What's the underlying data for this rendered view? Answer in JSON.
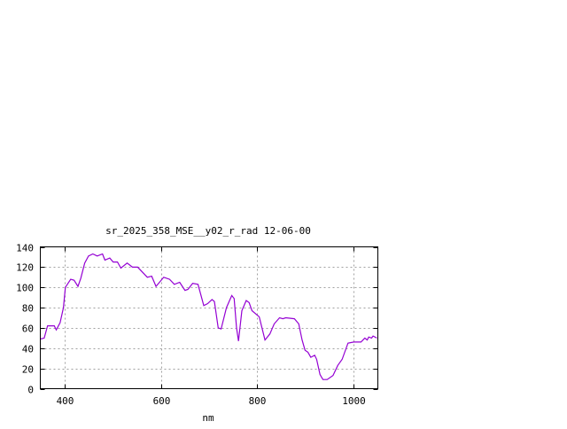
{
  "chart_data": {
    "type": "line",
    "title": "sr_2025_358_MSE__y02_r_rad 12-06-00",
    "xlabel": "nm",
    "ylabel": "",
    "xlim": [
      350,
      1050
    ],
    "ylim": [
      0,
      140
    ],
    "xticks": [
      400,
      600,
      800,
      1000
    ],
    "yticks": [
      0,
      20,
      40,
      60,
      80,
      100,
      120,
      140
    ],
    "grid": true,
    "legend": "none",
    "line_color": "#9400d3",
    "series": [
      {
        "x": [
          350,
          358,
          365,
          379,
          383,
          391,
          398,
          402,
          413,
          420,
          428,
          434,
          442,
          450,
          459,
          468,
          479,
          484,
          494,
          501,
          510,
          517,
          530,
          541,
          552,
          572,
          581,
          590,
          606,
          618,
          628,
          639,
          650,
          656,
          666,
          677,
          689,
          697,
          706,
          711,
          719,
          725,
          736,
          747,
          752,
          757,
          761,
          768,
          777,
          783,
          789,
          804,
          816,
          826,
          835,
          846,
          853,
          859,
          877,
          886,
          893,
          899,
          905,
          911,
          919,
          923,
          930,
          936,
          945,
          957,
          967,
          976,
          988,
          1000,
          1015,
          1023,
          1028,
          1031,
          1037,
          1040,
          1048
        ],
        "y": [
          49,
          50,
          62,
          62,
          58,
          65,
          80,
          100,
          108,
          107,
          101,
          109,
          124,
          131,
          133,
          131,
          133,
          127,
          129,
          125,
          125,
          119,
          124,
          120,
          120,
          110,
          111,
          101,
          110,
          108,
          103,
          105,
          97,
          98,
          104,
          103,
          82,
          84,
          88,
          86,
          60,
          59,
          80,
          92,
          89,
          60,
          47,
          77,
          87,
          85,
          77,
          71,
          48,
          54,
          64,
          70,
          69,
          70,
          69,
          64,
          48,
          38,
          36,
          31,
          33,
          29,
          14,
          9,
          9,
          13,
          23,
          29,
          45,
          46,
          46,
          50,
          48,
          51,
          50,
          52,
          50
        ]
      }
    ]
  }
}
